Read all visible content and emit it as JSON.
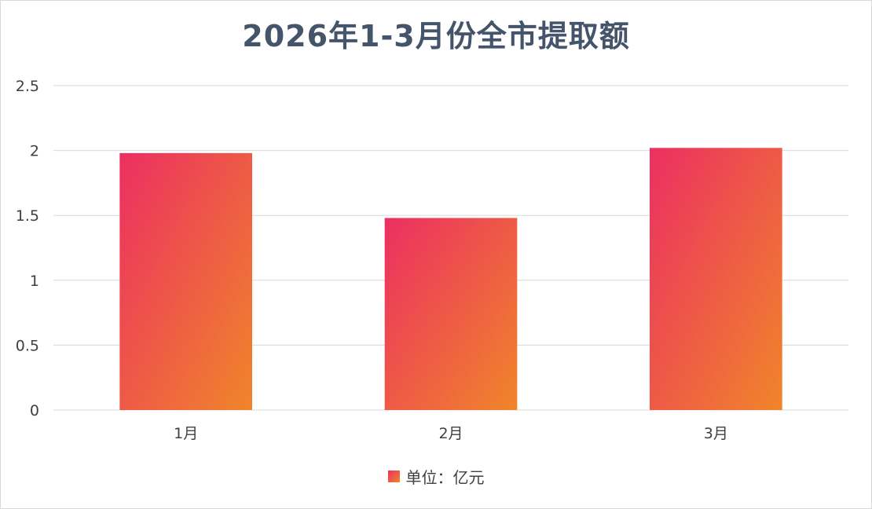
{
  "chart_data": {
    "type": "bar",
    "title": "2026年1-3月份全市提取额",
    "categories": [
      "1月",
      "2月",
      "3月"
    ],
    "series": [
      {
        "name": "单位：亿元",
        "values": [
          1.98,
          1.48,
          2.02
        ]
      }
    ],
    "ylim": [
      0,
      2.5
    ],
    "yticks": [
      "0",
      "0.5",
      "1",
      "1.5",
      "2",
      "2.5"
    ],
    "ytick_values": [
      0,
      0.5,
      1,
      1.5,
      2,
      2.5
    ],
    "xlabel": "",
    "ylabel": "",
    "grid": true,
    "legend_position": "bottom",
    "colors": {
      "bar_gradient_start": "#ec2f62",
      "bar_gradient_end": "#f0852a",
      "gridline": "#d9d9d9",
      "title": "#44546a"
    }
  }
}
